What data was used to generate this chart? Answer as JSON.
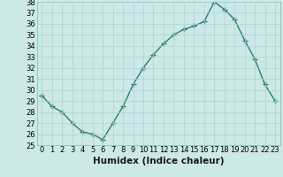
{
  "x": [
    0,
    1,
    2,
    3,
    4,
    5,
    6,
    7,
    8,
    9,
    10,
    11,
    12,
    13,
    14,
    15,
    16,
    17,
    18,
    19,
    20,
    21,
    22,
    23
  ],
  "y": [
    29.5,
    28.5,
    28.0,
    27.0,
    26.2,
    26.0,
    25.5,
    27.0,
    28.5,
    30.5,
    32.0,
    33.2,
    34.2,
    35.0,
    35.5,
    35.8,
    36.2,
    38.0,
    37.3,
    36.4,
    34.5,
    32.8,
    30.5,
    29.0
  ],
  "line_color": "#2e7d6e",
  "bg_color": "#cce8e8",
  "grid_color": "#aad4d4",
  "xlabel": "Humidex (Indice chaleur)",
  "ylim": [
    25,
    38
  ],
  "xlim": [
    -0.5,
    23.5
  ],
  "yticks": [
    25,
    26,
    27,
    28,
    29,
    30,
    31,
    32,
    33,
    34,
    35,
    36,
    37,
    38
  ],
  "xticks": [
    0,
    1,
    2,
    3,
    4,
    5,
    6,
    7,
    8,
    9,
    10,
    11,
    12,
    13,
    14,
    15,
    16,
    17,
    18,
    19,
    20,
    21,
    22,
    23
  ],
  "marker": "+",
  "marker_size": 4,
  "line_width": 1.0,
  "xlabel_fontsize": 7.5,
  "tick_fontsize": 6.0
}
